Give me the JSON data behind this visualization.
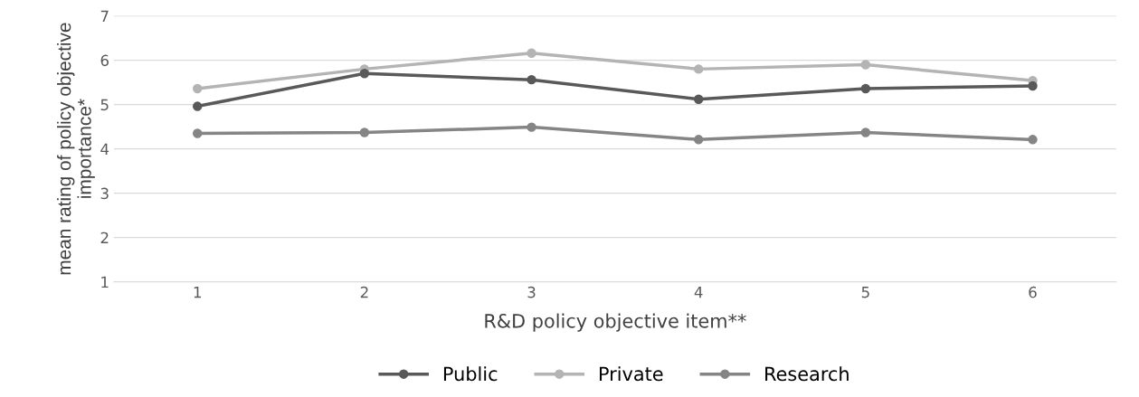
{
  "chart_data": {
    "type": "line",
    "xlabel": "R&D policy objective item**",
    "ylabel": "mean rating of policy objective\nimportance*",
    "categories": [
      "1",
      "2",
      "3",
      "4",
      "5",
      "6"
    ],
    "series": [
      {
        "name": "Public",
        "color": "#595959",
        "values": [
          4.96,
          5.7,
          5.56,
          5.12,
          5.36,
          5.42
        ]
      },
      {
        "name": "Private",
        "color": "#b4b4b4",
        "values": [
          5.36,
          5.8,
          6.16,
          5.8,
          5.9,
          5.54
        ]
      },
      {
        "name": "Research",
        "color": "#858585",
        "values": [
          4.35,
          4.37,
          4.49,
          4.21,
          4.37,
          4.21
        ]
      }
    ],
    "ylim": [
      1,
      7
    ],
    "yticks": [
      1,
      2,
      3,
      4,
      5,
      6,
      7
    ],
    "grid": "y",
    "legend": "bottom",
    "marker": "circle"
  }
}
